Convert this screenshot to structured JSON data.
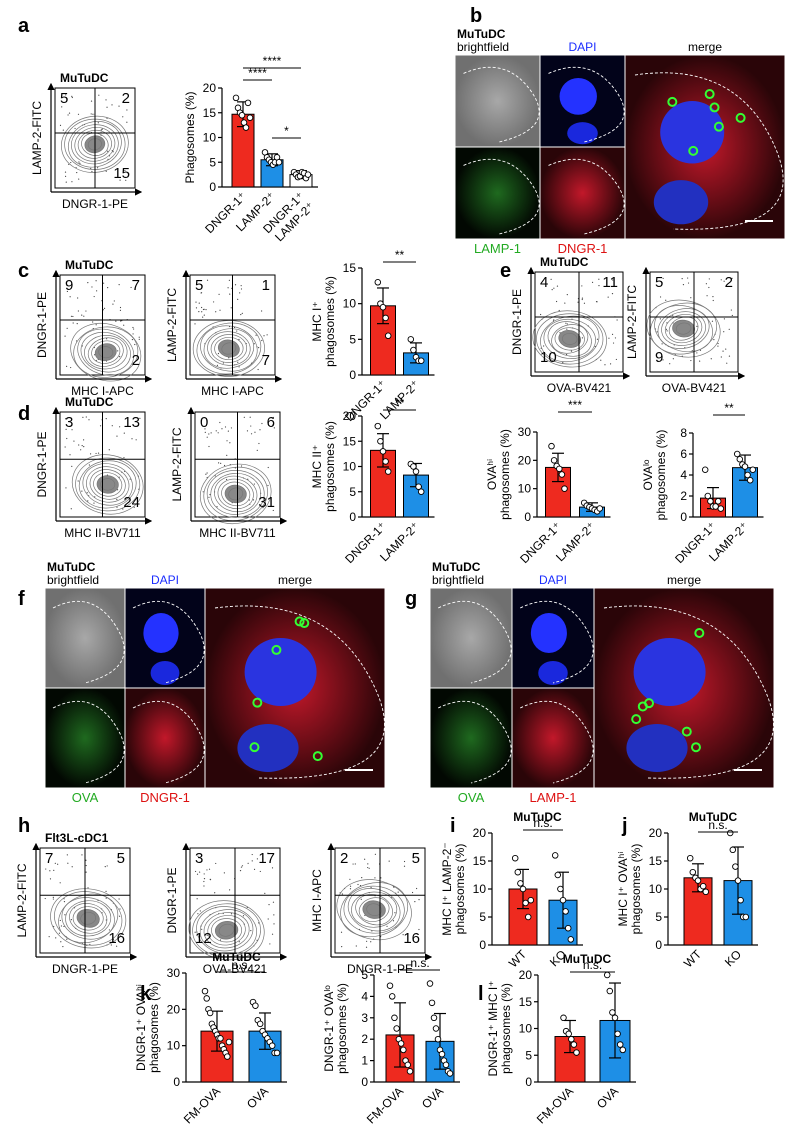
{
  "panel_labels": [
    "a",
    "b",
    "c",
    "d",
    "e",
    "f",
    "g",
    "h",
    "i",
    "j",
    "k",
    "l"
  ],
  "flow": [
    {
      "title": "MuTuDC",
      "xlabel": "DNGR-1-PE",
      "ylabel": "LAMP-2-FITC",
      "quads": {
        "tl": 5,
        "tr": 2,
        "br": 15
      }
    },
    {
      "title": "MuTuDC",
      "xlabel": "MHC I-APC",
      "ylabel": "DNGR-1-PE",
      "quads": {
        "tl": 9,
        "tr": 7,
        "br": 2
      }
    },
    {
      "xlabel": "MHC I-APC",
      "ylabel": "LAMP-2-FITC",
      "quads": {
        "tl": 5,
        "tr": 1,
        "br": 7
      }
    },
    {
      "title": "MuTuDC",
      "xlabel": "MHC II-BV711",
      "ylabel": "DNGR-1-PE",
      "quads": {
        "tl": 3,
        "tr": 13,
        "br": 24
      }
    },
    {
      "xlabel": "MHC II-BV711",
      "ylabel": "LAMP-2-FITC",
      "quads": {
        "tl": 0,
        "tr": 6,
        "br": 31
      }
    },
    {
      "title": "MuTuDC",
      "xlabel": "OVA-BV421",
      "ylabel": "DNGR-1-PE",
      "quads": {
        "tl": 4,
        "tr": 11,
        "bl": 10
      }
    },
    {
      "xlabel": "OVA-BV421",
      "ylabel": "LAMP-2-FITC",
      "quads": {
        "tl": 5,
        "tr": 2,
        "bl": 9
      }
    },
    {
      "title": "Flt3L-cDC1",
      "xlabel": "DNGR-1-PE",
      "ylabel": "LAMP-2-FITC",
      "quads": {
        "tl": 7,
        "tr": 5,
        "br": 16
      }
    },
    {
      "xlabel": "OVA-BV421",
      "ylabel": "DNGR-1-PE",
      "quads": {
        "tl": 3,
        "tr": 17,
        "bl": 12
      }
    },
    {
      "xlabel": "DNGR-1-PE",
      "ylabel": "MHC I-APC",
      "quads": {
        "tl": 2,
        "tr": 5,
        "br": 16
      }
    }
  ],
  "bars": [
    {
      "ylabel": [
        "Phagosomes (%)"
      ],
      "categories": [
        "DNGR-1⁺",
        "LAMP-2⁺",
        [
          "DNGR-1⁺",
          "LAMP-2⁺"
        ]
      ],
      "colors": [
        "#ee2a1f",
        "#1e8fe6",
        "#ffffff"
      ],
      "values": [
        14.7,
        5.5,
        2.5
      ],
      "errors": [
        2.5,
        1.2,
        0.8
      ],
      "points": [
        [
          18,
          16,
          15,
          14.5,
          13,
          12,
          17,
          14
        ],
        [
          7,
          6,
          5.5,
          5,
          4.5,
          5,
          6,
          5
        ],
        [
          3,
          2.5,
          2,
          2.2,
          3,
          2.8,
          1.8,
          2.5
        ]
      ],
      "ylim": [
        0,
        20
      ],
      "yticks": [
        0,
        5,
        10,
        15,
        20
      ],
      "sig": [
        {
          "from": 0,
          "to": 1,
          "label": "****"
        },
        {
          "from": 0,
          "to": 2,
          "label": "****"
        },
        {
          "from": 1,
          "to": 2,
          "label": "*"
        }
      ]
    },
    {
      "ylabel": [
        "MHC I⁺",
        "phagosomes (%)"
      ],
      "categories": [
        "DNGR-1⁺",
        "LAMP-2⁺"
      ],
      "colors": [
        "#ee2a1f",
        "#1e8fe6"
      ],
      "values": [
        9.7,
        3.1
      ],
      "errors": [
        2.5,
        1.4
      ],
      "points": [
        [
          13,
          10,
          9.5,
          8,
          5.5
        ],
        [
          5,
          3.5,
          2.5,
          2,
          2
        ]
      ],
      "ylim": [
        0,
        15
      ],
      "yticks": [
        0,
        5,
        10,
        15
      ],
      "sig": [
        {
          "from": 0,
          "to": 1,
          "label": "**"
        }
      ]
    },
    {
      "ylabel": [
        "MHC II⁺",
        "phagosomes (%)"
      ],
      "categories": [
        "DNGR-1⁺",
        "LAMP-2⁺"
      ],
      "colors": [
        "#ee2a1f",
        "#1e8fe6"
      ],
      "values": [
        13.2,
        8.3
      ],
      "errors": [
        3.3,
        2.3
      ],
      "points": [
        [
          18,
          15,
          13,
          11,
          9
        ],
        [
          10.5,
          10,
          9,
          6,
          5
        ]
      ],
      "ylim": [
        0,
        20
      ],
      "yticks": [
        0,
        5,
        10,
        15,
        20
      ],
      "sig": [
        {
          "from": 0,
          "to": 1,
          "label": "**"
        }
      ]
    },
    {
      "ylabel": [
        "OVAʰⁱ",
        "phagosomes (%)"
      ],
      "categories": [
        "DNGR-1⁺",
        "LAMP-2⁺"
      ],
      "colors": [
        "#ee2a1f",
        "#1e8fe6"
      ],
      "values": [
        17.5,
        3.5
      ],
      "errors": [
        5,
        1.5
      ],
      "points": [
        [
          25,
          20,
          18,
          17,
          15,
          10
        ],
        [
          5,
          4,
          3.5,
          3,
          2.5,
          2,
          3
        ]
      ],
      "ylim": [
        0,
        30
      ],
      "yticks": [
        0,
        10,
        20,
        30
      ],
      "sig": [
        {
          "from": 0,
          "to": 1,
          "label": "***"
        }
      ]
    },
    {
      "ylabel": [
        "OVAˡᵒ",
        "phagosomes (%)"
      ],
      "categories": [
        "DNGR-1⁺",
        "LAMP-2⁺"
      ],
      "colors": [
        "#ee2a1f",
        "#1e8fe6"
      ],
      "values": [
        1.8,
        4.7
      ],
      "errors": [
        1,
        1.2
      ],
      "points": [
        [
          4.5,
          2,
          1.5,
          1,
          1,
          1.5,
          0.8
        ],
        [
          6,
          5.5,
          5,
          4.8,
          4,
          3.5,
          4.5
        ]
      ],
      "ylim": [
        0,
        8
      ],
      "yticks": [
        0,
        2,
        4,
        6,
        8
      ],
      "sig": [
        {
          "from": 0,
          "to": 1,
          "label": "**"
        }
      ]
    },
    {
      "title": "MuTuDC",
      "ylabel": [
        "MHC I⁺ LAMP-2⁻",
        "phagosomes (%)"
      ],
      "categories": [
        "WT",
        "KO"
      ],
      "colors": [
        "#ee2a1f",
        "#1e8fe6"
      ],
      "values": [
        10,
        8
      ],
      "errors": [
        3.5,
        5
      ],
      "points": [
        [
          15.5,
          13,
          11,
          10,
          7.5,
          5,
          8
        ],
        [
          16,
          12.5,
          10,
          8,
          6,
          3,
          1
        ]
      ],
      "ylim": [
        0,
        20
      ],
      "yticks": [
        0,
        5,
        10,
        15,
        20
      ],
      "sig": [
        {
          "from": 0,
          "to": 1,
          "label": "n.s."
        }
      ]
    },
    {
      "title": "MuTuDC",
      "ylabel": [
        "MHC I⁺ OVAʰⁱ",
        "phagosomes (%)"
      ],
      "categories": [
        "WT",
        "KO"
      ],
      "colors": [
        "#ee2a1f",
        "#1e8fe6"
      ],
      "values": [
        12,
        11.5
      ],
      "errors": [
        2.5,
        6
      ],
      "points": [
        [
          15.5,
          13,
          12,
          11.5,
          10,
          10.5,
          9.5
        ],
        [
          20,
          17,
          14,
          11.5,
          8,
          5,
          5
        ]
      ],
      "ylim": [
        0,
        20
      ],
      "yticks": [
        0,
        5,
        10,
        15,
        20
      ],
      "sig": [
        {
          "from": 0,
          "to": 1,
          "label": "n.s."
        }
      ]
    },
    {
      "title": "MuTuDC",
      "ylabel": [
        "DNGR-1⁺ OVAʰⁱ",
        "phagosomes (%)"
      ],
      "categories": [
        "FM-OVA",
        "OVA"
      ],
      "colors": [
        "#ee2a1f",
        "#1e8fe6"
      ],
      "values": [
        14,
        14
      ],
      "errors": [
        5.5,
        5
      ],
      "points": [
        [
          25,
          23,
          20,
          19,
          16,
          15,
          14,
          13,
          12,
          12,
          10,
          9,
          8,
          7,
          11
        ],
        [
          22,
          21,
          17,
          16,
          14,
          13,
          12,
          11,
          10,
          8,
          8
        ]
      ],
      "ylim": [
        0,
        30
      ],
      "yticks": [
        0,
        10,
        20,
        30
      ],
      "sig": [
        {
          "from": 0,
          "to": 1,
          "label": "n.s."
        }
      ]
    },
    {
      "ylabel": [
        "DNGR-1⁺ OVAˡᵒ",
        "phagosomes (%)"
      ],
      "categories": [
        "FM-OVA",
        "OVA"
      ],
      "colors": [
        "#ee2a1f",
        "#1e8fe6"
      ],
      "values": [
        2.2,
        1.9
      ],
      "errors": [
        1.5,
        1.3
      ],
      "points": [
        [
          4.5,
          4,
          3,
          2.5,
          2,
          1.8,
          1.5,
          1,
          0.8,
          0.5
        ],
        [
          4.6,
          3.7,
          3,
          2.5,
          2,
          1.5,
          1.3,
          1,
          0.8,
          0.5,
          0.4
        ]
      ],
      "ylim": [
        0,
        5
      ],
      "yticks": [
        0,
        1,
        2,
        3,
        4,
        5
      ],
      "sig": [
        {
          "from": 0,
          "to": 1,
          "label": "n.s."
        }
      ]
    },
    {
      "title": "MuTuDC",
      "ylabel": [
        "DNGR-1⁺ MHC I⁺",
        "phagosomes (%)"
      ],
      "categories": [
        "FM-OVA",
        "OVA"
      ],
      "colors": [
        "#ee2a1f",
        "#1e8fe6"
      ],
      "values": [
        8.5,
        11.5
      ],
      "errors": [
        3,
        7
      ],
      "points": [
        [
          12,
          9.5,
          9,
          8,
          7,
          5.5
        ],
        [
          20,
          17,
          13,
          12,
          9,
          7,
          6
        ]
      ],
      "ylim": [
        0,
        20
      ],
      "yticks": [
        0,
        5,
        10,
        15,
        20
      ],
      "sig": [
        {
          "from": 0,
          "to": 1,
          "label": "n.s."
        }
      ]
    }
  ],
  "images": [
    {
      "title": "MuTuDC",
      "sub": "brightfield",
      "top": "DAPI",
      "merge": "merge",
      "bottom": [
        "LAMP-1",
        "DNGR-1"
      ],
      "colors": [
        "#22aa22",
        "#dd1111"
      ]
    },
    {
      "title": "MuTuDC",
      "sub": "brightfield",
      "top": "DAPI",
      "merge": "merge",
      "bottom": [
        "OVA",
        "DNGR-1"
      ],
      "colors": [
        "#22aa22",
        "#dd1111"
      ]
    },
    {
      "title": "MuTuDC",
      "sub": "brightfield",
      "top": "DAPI",
      "merge": "merge",
      "bottom": [
        "OVA",
        "LAMP-1"
      ],
      "colors": [
        "#22aa22",
        "#dd1111"
      ]
    }
  ]
}
